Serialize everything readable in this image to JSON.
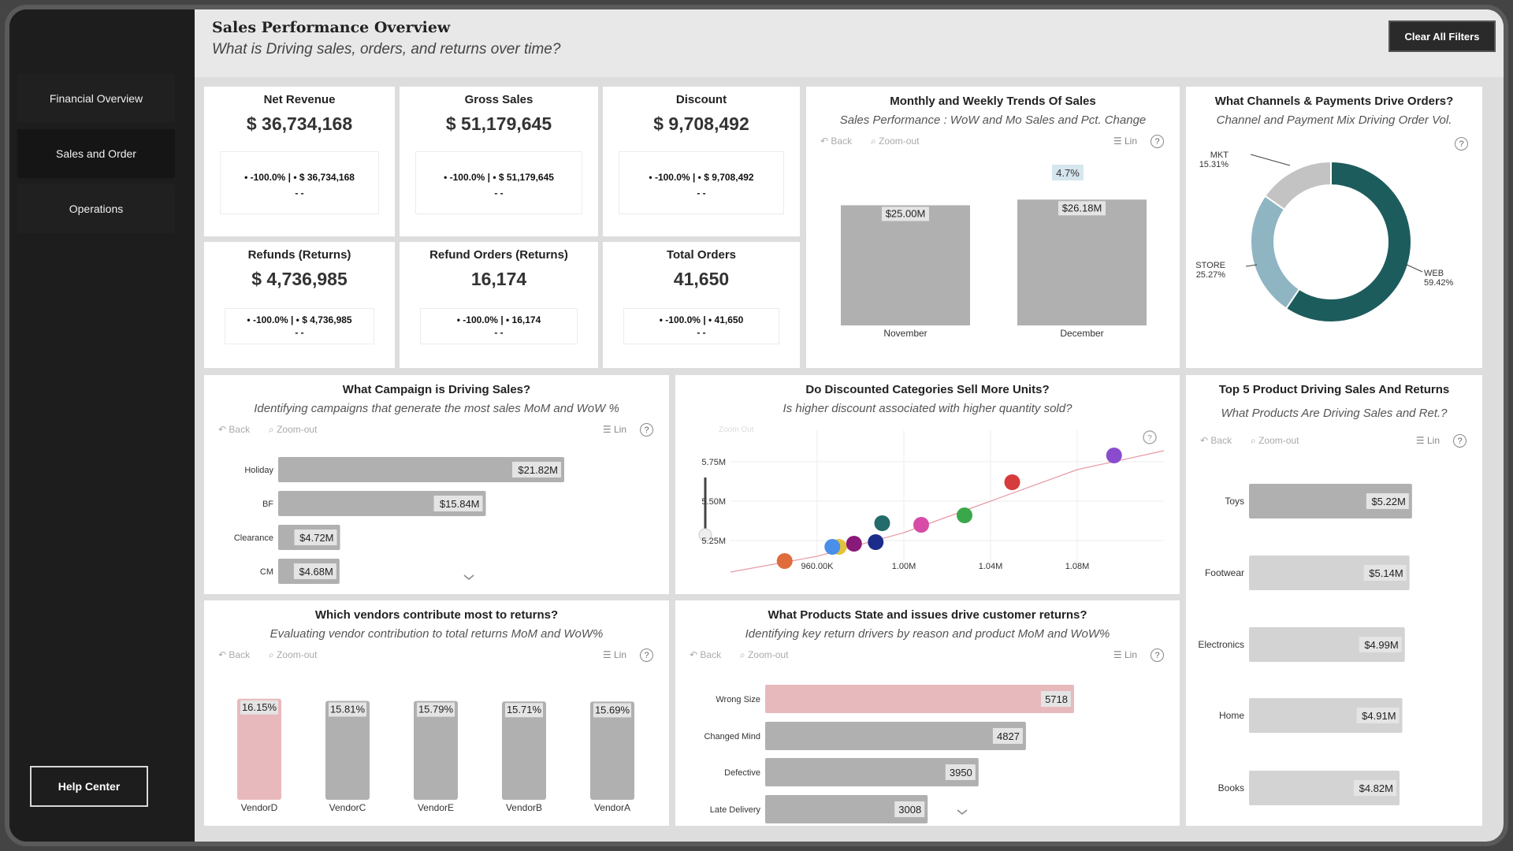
{
  "sidebar": {
    "items": [
      {
        "label": "Financial Overview"
      },
      {
        "label": "Sales and Order"
      },
      {
        "label": "Operations"
      }
    ],
    "help_label": "Help Center"
  },
  "header": {
    "title": "Sales Performance Overview",
    "subtitle": "What is Driving sales, orders, and returns over time?",
    "clear_label": "Clear All Filters"
  },
  "toolbar": {
    "back": "Back",
    "zoom": "Zoom-out",
    "lin": "Lin",
    "help": "?"
  },
  "kpis": [
    {
      "title": "Net Revenue",
      "value": "$ 36,734,168",
      "delta": "• -100.0% | • $ 36,734,168",
      "dash": "- -"
    },
    {
      "title": "Gross Sales",
      "value": "$ 51,179,645",
      "delta": "• -100.0% | • $ 51,179,645",
      "dash": "- -"
    },
    {
      "title": "Discount",
      "value": "$ 9,708,492",
      "delta": "• -100.0% | • $ 9,708,492",
      "dash": "- -"
    },
    {
      "title": "Refunds (Returns)",
      "value": "$ 4,736,985",
      "delta": "• -100.0% | • $ 4,736,985",
      "dash": "- -"
    },
    {
      "title": "Refund Orders (Returns)",
      "value": "16,174",
      "delta": "• -100.0% | • 16,174",
      "dash": "- -"
    },
    {
      "title": "Total Orders",
      "value": "41,650",
      "delta": "• -100.0% | • 41,650",
      "dash": "- -"
    }
  ],
  "monthly": {
    "title": "Monthly and Weekly Trends Of Sales",
    "subtitle": "Sales Performance : WoW and Mo Sales and Pct. Change",
    "pct_change": "4.7%"
  },
  "channels": {
    "title": "What Channels & Payments Drive Orders?",
    "subtitle": "Channel and Payment Mix Driving Order Vol."
  },
  "campaign": {
    "title": "What Campaign is Driving Sales?",
    "subtitle": "Identifying campaigns that generate the most sales MoM and WoW %"
  },
  "discount": {
    "title": "Do Discounted Categories Sell More Units?",
    "subtitle": "Is higher discount associated with higher quantity sold?",
    "zoom_out": "Zoom Out"
  },
  "top5": {
    "title": "Top 5 Product Driving Sales And Returns",
    "subtitle": "What Products Are Driving Sales and Ret.?"
  },
  "vendors": {
    "title": "Which vendors contribute most to returns?",
    "subtitle": "Evaluating vendor contribution to total returns MoM and WoW%"
  },
  "returns": {
    "title": "What Products State and issues drive customer returns?",
    "subtitle": "Identifying key return drivers by reason and product MoM and WoW%"
  },
  "chart_data": [
    {
      "id": "monthly",
      "type": "bar",
      "categories": [
        "November",
        "December"
      ],
      "values": [
        25.0,
        26.18
      ],
      "labels": [
        "$25.00M",
        "$26.18M"
      ],
      "ylim": [
        0,
        30
      ],
      "color": "#b0b0b0"
    },
    {
      "id": "channels",
      "type": "pie",
      "labels": [
        "WEB",
        "STORE",
        "MKT"
      ],
      "values": [
        59.42,
        25.27,
        15.31
      ],
      "value_labels": [
        "59.42%",
        "25.27%",
        "15.31%"
      ],
      "colors": [
        "#1d5c5c",
        "#8fb5c2",
        "#c3c3c3"
      ]
    },
    {
      "id": "campaign",
      "type": "bar",
      "orientation": "horizontal",
      "categories": [
        "Holiday",
        "BF",
        "Clearance",
        "CM"
      ],
      "values": [
        21.82,
        15.84,
        4.72,
        4.68
      ],
      "labels": [
        "$21.82M",
        "$15.84M",
        "$4.72M",
        "$4.68M"
      ],
      "xlim": [
        0,
        22
      ],
      "color": "#b0b0b0"
    },
    {
      "id": "discount",
      "type": "scatter",
      "x_ticks": [
        "960.00K",
        "1.00M",
        "1.04M",
        "1.08M"
      ],
      "x_tick_values": [
        0.96,
        1.0,
        1.04,
        1.08
      ],
      "y_ticks": [
        "5.25M",
        "5.50M",
        "5.75M"
      ],
      "y_tick_values": [
        5.25,
        5.5,
        5.75
      ],
      "xlim": [
        0.92,
        1.12
      ],
      "ylim": [
        5.1,
        5.85
      ],
      "grid": true,
      "points": [
        {
          "x": 0.945,
          "y": 5.12,
          "color": "#e06b3c"
        },
        {
          "x": 0.97,
          "y": 5.21,
          "color": "#e3c23a"
        },
        {
          "x": 0.967,
          "y": 5.21,
          "color": "#4a8fe8"
        },
        {
          "x": 0.977,
          "y": 5.23,
          "color": "#8a1a7a"
        },
        {
          "x": 0.987,
          "y": 5.24,
          "color": "#1c2c8a"
        },
        {
          "x": 0.99,
          "y": 5.36,
          "color": "#246b6b"
        },
        {
          "x": 1.008,
          "y": 5.35,
          "color": "#d64ca6"
        },
        {
          "x": 1.028,
          "y": 5.41,
          "color": "#3aa84a"
        },
        {
          "x": 1.05,
          "y": 5.62,
          "color": "#d63c3c"
        },
        {
          "x": 1.097,
          "y": 5.79,
          "color": "#8a4ccf"
        }
      ],
      "trend": [
        [
          0.92,
          5.05
        ],
        [
          0.96,
          5.15
        ],
        [
          1.0,
          5.3
        ],
        [
          1.04,
          5.5
        ],
        [
          1.08,
          5.7
        ],
        [
          1.12,
          5.82
        ]
      ]
    },
    {
      "id": "top5",
      "type": "bar",
      "orientation": "horizontal",
      "categories": [
        "Toys",
        "Footwear",
        "Electronics",
        "Home",
        "Books"
      ],
      "values": [
        5.22,
        5.14,
        4.99,
        4.91,
        4.82
      ],
      "labels": [
        "$5.22M",
        "$5.14M",
        "$4.99M",
        "$4.91M",
        "$4.82M"
      ],
      "xlim": [
        0,
        5.3
      ],
      "colors": [
        "#b0b0b0",
        "#d3d3d3",
        "#d3d3d3",
        "#d3d3d3",
        "#d3d3d3"
      ]
    },
    {
      "id": "vendors",
      "type": "bar",
      "categories": [
        "VendorD",
        "VendorC",
        "VendorE",
        "VendorB",
        "VendorA"
      ],
      "values": [
        16.15,
        15.81,
        15.79,
        15.71,
        15.69
      ],
      "labels": [
        "16.15%",
        "15.81%",
        "15.79%",
        "15.71%",
        "15.69%"
      ],
      "ylim": [
        0,
        17
      ],
      "colors": [
        "#e8b9bc",
        "#b0b0b0",
        "#b0b0b0",
        "#b0b0b0",
        "#b0b0b0"
      ]
    },
    {
      "id": "returns",
      "type": "bar",
      "orientation": "horizontal",
      "categories": [
        "Wrong Size",
        "Changed Mind",
        "Defective",
        "Late Delivery"
      ],
      "values": [
        5718,
        4827,
        3950,
        3008
      ],
      "labels": [
        "5718",
        "4827",
        "3950",
        "3008"
      ],
      "xlim": [
        0,
        5718
      ],
      "colors": [
        "#e8b9bc",
        "#b0b0b0",
        "#b0b0b0",
        "#b0b0b0"
      ]
    }
  ]
}
